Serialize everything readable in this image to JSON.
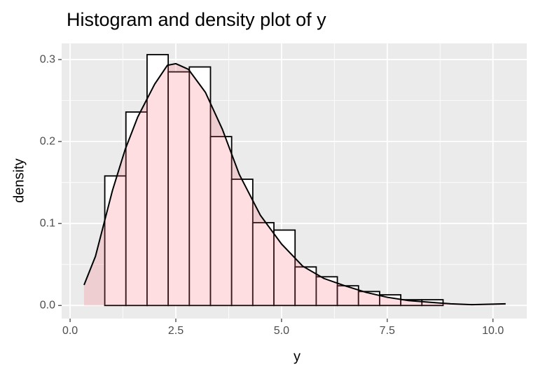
{
  "chart_data": {
    "type": "histogram",
    "title": "Histogram and density plot of y",
    "x_label": "y",
    "y_label": "density",
    "bins": [
      0.82,
      1.32,
      1.82,
      2.32,
      2.82,
      3.32,
      3.82,
      4.32,
      4.82,
      5.32,
      5.82,
      6.32,
      6.82,
      7.32,
      7.82,
      8.32,
      8.82
    ],
    "values": [
      0.158,
      0.236,
      0.306,
      0.285,
      0.291,
      0.206,
      0.154,
      0.101,
      0.092,
      0.047,
      0.035,
      0.024,
      0.017,
      0.013,
      0.007,
      0.007
    ],
    "color": "#ffffff",
    "edge_color": "#000000",
    "density": {
      "x": [
        0.33,
        0.6,
        0.8,
        1.0,
        1.3,
        1.6,
        2.0,
        2.3,
        2.5,
        2.8,
        3.2,
        3.6,
        4.0,
        4.5,
        5.0,
        5.5,
        6.0,
        6.5,
        7.0,
        7.5,
        8.0,
        8.5,
        9.0,
        9.5,
        10.3
      ],
      "y": [
        0.025,
        0.06,
        0.1,
        0.14,
        0.19,
        0.23,
        0.27,
        0.293,
        0.295,
        0.288,
        0.26,
        0.215,
        0.16,
        0.11,
        0.075,
        0.048,
        0.033,
        0.024,
        0.016,
        0.01,
        0.006,
        0.004,
        0.002,
        0.001,
        0.002
      ],
      "fill": "#ff6b7d",
      "line_color": "#000000"
    },
    "xlim": [
      -0.2,
      10.8
    ],
    "ylim": [
      -0.016,
      0.3197
    ],
    "xticks": [
      {
        "value": 0,
        "label": "0.0"
      },
      2.5,
      {
        "value": 5,
        "label": "5.0"
      },
      7.5,
      {
        "value": 10,
        "label": "10.0"
      }
    ],
    "yticks": [
      {
        "value": 0,
        "label": "0.0"
      },
      0.1,
      0.2,
      0.3
    ],
    "x_minor_grid": [
      1.25,
      3.75,
      6.25,
      8.75
    ],
    "y_minor_grid": [
      0.05,
      0.15,
      0.25
    ],
    "grid": true
  }
}
